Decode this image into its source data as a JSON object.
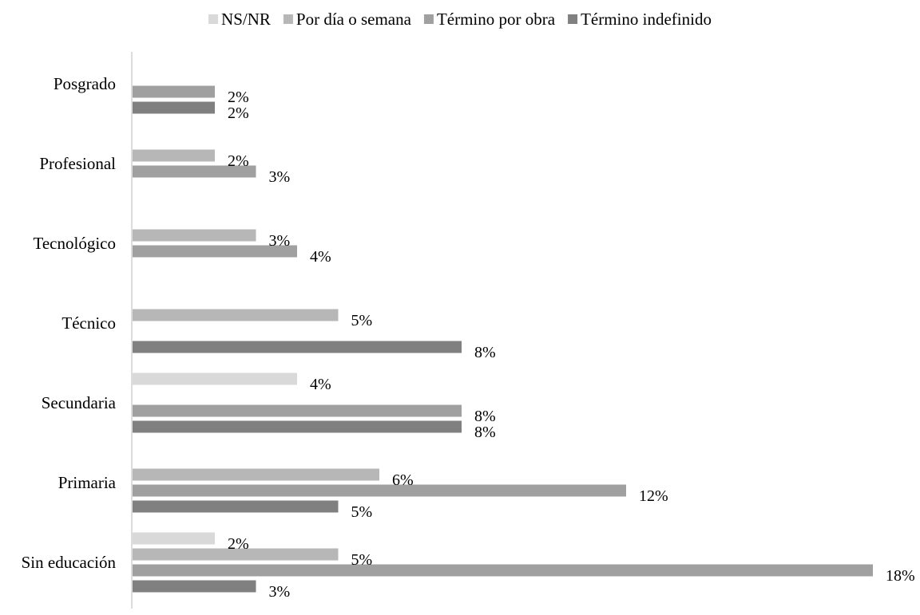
{
  "chart_data": {
    "type": "bar",
    "orientation": "horizontal",
    "categories": [
      "Posgrado",
      "Profesional",
      "Tecnológico",
      "Técnico",
      "Secundaria",
      "Primaria",
      "Sin educación"
    ],
    "series": [
      {
        "name": "NS/NR",
        "color": "#d9d9d9",
        "values": [
          0,
          0,
          0,
          0,
          4,
          0,
          2
        ]
      },
      {
        "name": "Por día o semana",
        "color": "#b7b7b7",
        "values": [
          0,
          2,
          3,
          5,
          0,
          6,
          5
        ]
      },
      {
        "name": "Término por obra",
        "color": "#a0a0a0",
        "values": [
          2,
          3,
          4,
          0,
          8,
          12,
          18
        ]
      },
      {
        "name": "Término indefinido",
        "color": "#808080",
        "values": [
          2,
          0,
          0,
          8,
          8,
          5,
          3
        ]
      }
    ],
    "value_suffix": "%",
    "xlim": [
      0,
      18
    ],
    "grid": false,
    "legend_position": "top"
  }
}
